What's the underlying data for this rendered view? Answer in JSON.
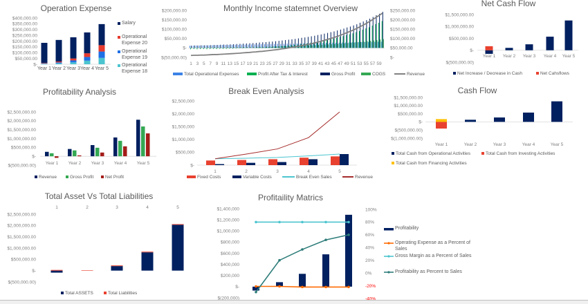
{
  "chart_data": [
    {
      "type": "bar",
      "stacked": true,
      "title": "Operation Expense",
      "categories": [
        "Year 1",
        "Year 2",
        "Year 3",
        "Year 4",
        "Year 5"
      ],
      "y_ticks": [
        "$400,000.00",
        "$350,000.00",
        "$300,000.00",
        "$250,000.00",
        "$200,000.00",
        "$150,000.00",
        "$100,000.00",
        "$50,000.00",
        "$-"
      ],
      "ylim": [
        0,
        400000
      ],
      "legend_position": "right",
      "series": [
        {
          "name": "Salary",
          "color": "#002060",
          "values": [
            173000,
            186000,
            183000,
            180000,
            182000
          ]
        },
        {
          "name": "Operational Expense 20",
          "color": "#e63a2e",
          "values": [
            4000,
            8000,
            17000,
            32000,
            55000
          ]
        },
        {
          "name": "Operational Expense 19",
          "color": "#1f6fe5",
          "values": [
            4000,
            8000,
            17000,
            32000,
            55000
          ]
        },
        {
          "name": "Operational Expense 18",
          "color": "#4bc4cf",
          "values": [
            4000,
            8000,
            16000,
            31000,
            55000
          ]
        }
      ]
    },
    {
      "type": "bar",
      "title": "Monthly Income statemnet Overview",
      "x": [
        1,
        2,
        3,
        4,
        5,
        6,
        7,
        8,
        9,
        10,
        11,
        12,
        13,
        14,
        15,
        16,
        17,
        18,
        19,
        20,
        21,
        22,
        23,
        24,
        25,
        26,
        27,
        28,
        29,
        30,
        31,
        32,
        33,
        34,
        35,
        36,
        37,
        38,
        39,
        40,
        41,
        42,
        43,
        44,
        45,
        46,
        47,
        48,
        49,
        50,
        51,
        52,
        53,
        54,
        55,
        56,
        57,
        58,
        59,
        60
      ],
      "y_ticks_left": [
        "$200,000.00",
        "$150,000.00",
        "$100,000.00",
        "$50,000.00",
        "$-",
        "$(50,000.00)"
      ],
      "y_ticks_right": [
        "$250,000.00",
        "$200,000.00",
        "$150,000.00",
        "$100,000.00",
        "$50,000.00",
        "$-"
      ],
      "ylim_left": [
        -50000,
        200000
      ],
      "ylim_right": [
        0,
        250000
      ],
      "legend_position": "bottom",
      "series": [
        {
          "name": "Total Operational Expenses",
          "type": "bar",
          "color": "#3c82e6",
          "values": [
            12000,
            12000,
            13000,
            13000,
            13000,
            14000,
            14000,
            14000,
            15000,
            15000,
            16000,
            16000,
            16000,
            17000,
            17000,
            17000,
            18000,
            18000,
            18000,
            19000,
            19000,
            19000,
            20000,
            20000,
            21000,
            21000,
            21000,
            22000,
            22000,
            22000,
            23000,
            23000,
            23000,
            24000,
            24000,
            24000,
            25000,
            25000,
            26000,
            26000,
            26000,
            27000,
            27000,
            27000,
            28000,
            28000,
            28000,
            29000,
            29000,
            29000,
            30000,
            30000,
            31000,
            31000,
            31000,
            32000,
            32000,
            32000,
            33000,
            33000
          ]
        },
        {
          "name": "Profit After Tax & Interest",
          "type": "bar",
          "color": "#00b050",
          "values": [
            -7000,
            -6000,
            -7000,
            -6000,
            -6000,
            -7000,
            -6000,
            -5000,
            -6000,
            -5000,
            -5000,
            -5000,
            -4000,
            -4000,
            -3000,
            -2000,
            -2000,
            -1000,
            0,
            0,
            1000,
            3000,
            3000,
            3000,
            4000,
            5000,
            7000,
            8000,
            10000,
            12000,
            13000,
            15000,
            17000,
            18000,
            21000,
            23000,
            25000,
            28000,
            30000,
            34000,
            36000,
            39000,
            43000,
            47000,
            50000,
            54000,
            59000,
            63000,
            69000,
            73000,
            78000,
            84000,
            90000,
            97000,
            104000,
            110000,
            119000,
            127000,
            134000,
            143000
          ]
        },
        {
          "name": "Gross Profit",
          "type": "bar",
          "color": "#002060",
          "values": [
            12000,
            13000,
            13000,
            14000,
            14000,
            14000,
            15000,
            16000,
            16000,
            17000,
            18000,
            18000,
            19000,
            20000,
            21000,
            22000,
            23000,
            24000,
            25000,
            26000,
            27000,
            29000,
            30000,
            31000,
            33000,
            34000,
            36000,
            38000,
            40000,
            42000,
            44000,
            46000,
            48000,
            51000,
            54000,
            56000,
            59000,
            62000,
            65000,
            69000,
            72000,
            76000,
            80000,
            84000,
            88000,
            93000,
            98000,
            103000,
            109000,
            114000,
            120000,
            126000,
            134000,
            141000,
            148000,
            156000,
            165000,
            174000,
            182000,
            192000
          ]
        },
        {
          "name": "COGS",
          "type": "bar",
          "color": "#34a853",
          "values": [
            2000,
            2000,
            2000,
            2000,
            2000,
            3000,
            3000,
            3000,
            3000,
            3000,
            3000,
            4000,
            4000,
            4000,
            4000,
            4000,
            5000,
            5000,
            5000,
            6000,
            6000,
            6000,
            6000,
            7000,
            7000,
            8000,
            8000,
            8000,
            9000,
            9000,
            10000,
            11000,
            11000,
            12000,
            12000,
            13000,
            14000,
            14000,
            15000,
            16000,
            17000,
            18000,
            19000,
            20000,
            21000,
            22000,
            23000,
            25000,
            26000,
            28000,
            29000,
            31000,
            32000,
            34000,
            36000,
            38000,
            40000,
            42000,
            45000,
            47000
          ]
        },
        {
          "name": "Revenue",
          "type": "line",
          "axis": "right",
          "color": "#808080",
          "values": [
            10000,
            11000,
            11000,
            12000,
            12000,
            13000,
            14000,
            15000,
            15000,
            16000,
            17000,
            18000,
            19000,
            20000,
            21000,
            22000,
            24000,
            25000,
            26000,
            28000,
            29000,
            31000,
            32000,
            34000,
            36000,
            38000,
            40000,
            42000,
            45000,
            47000,
            50000,
            53000,
            55000,
            59000,
            62000,
            65000,
            69000,
            72000,
            76000,
            81000,
            85000,
            90000,
            95000,
            100000,
            105000,
            111000,
            117000,
            124000,
            131000,
            138000,
            145000,
            153000,
            162000,
            171000,
            180000,
            190000,
            201000,
            212000,
            223000,
            235000
          ]
        }
      ]
    },
    {
      "type": "bar",
      "title": "Net Cash Flow",
      "categories": [
        "Year 1",
        "Year 2",
        "Year 3",
        "Year 4",
        "Year 5"
      ],
      "y_ticks": [
        "$1,500,000.00",
        "$1,000,000.00",
        "$500,000.00",
        "$-",
        "$(500,000.00)"
      ],
      "ylim": [
        -500000,
        1500000
      ],
      "legend_position": "bottom",
      "series": [
        {
          "name": "Net Increase / Decrease in Cash",
          "color": "#002060",
          "values": [
            -150000,
            100000,
            250000,
            570000,
            1250000
          ]
        },
        {
          "name": "Net Cahsflows",
          "color": "#e8412f",
          "values": [
            170000,
            0,
            0,
            0,
            0
          ]
        }
      ]
    },
    {
      "type": "bar",
      "title": "Profitability Analysis",
      "categories": [
        "Year 1",
        "Year 2",
        "Year 3",
        "Year 4",
        "Year 5"
      ],
      "y_ticks": [
        "$2,500,000.00",
        "$2,000,000.00",
        "$1,500,000.00",
        "$1,000,000.00",
        "$500,000.00",
        "$-",
        "$(500,000.00)"
      ],
      "ylim": [
        -500000,
        2500000
      ],
      "legend_position": "bottom",
      "series": [
        {
          "name": "Revenue",
          "color": "#002060",
          "values": [
            250000,
            410000,
            630000,
            1060000,
            2060000
          ]
        },
        {
          "name": "Gross Profit",
          "color": "#34a853",
          "values": [
            170000,
            330000,
            480000,
            870000,
            1680000
          ]
        },
        {
          "name": "Net Profit",
          "color": "#a31c18",
          "values": [
            -90000,
            50000,
            210000,
            560000,
            1290000
          ]
        }
      ]
    },
    {
      "type": "bar",
      "title": "Break Even Analysis",
      "categories": [
        "1",
        "2",
        "3",
        "4",
        "5"
      ],
      "y_ticks": [
        "$2,500,000",
        "$2,000,000",
        "$1,500,000",
        "$1,000,000",
        "$500,000",
        "$-"
      ],
      "ylim": [
        0,
        2500000
      ],
      "legend_position": "bottom",
      "series": [
        {
          "name": "Fixed Costs",
          "type": "bar",
          "color": "#e8412f",
          "values": [
            180000,
            200000,
            230000,
            290000,
            340000
          ]
        },
        {
          "name": "Variable Costs",
          "type": "bar",
          "color": "#002060",
          "values": [
            40000,
            90000,
            120000,
            230000,
            430000
          ]
        },
        {
          "name": "Break Even Sales",
          "type": "line",
          "color": "#4bc4cf",
          "values": [
            250000,
            270000,
            300000,
            360000,
            430000
          ]
        },
        {
          "name": "Revenue",
          "type": "line",
          "color": "#a52a2a",
          "values": [
            250000,
            430000,
            630000,
            1070000,
            2070000
          ]
        }
      ]
    },
    {
      "type": "bar",
      "stacked": true,
      "title": "Cash Flow",
      "categories": [
        "Year 1",
        "Year 2",
        "Year 3",
        "Year 4",
        "Year 5"
      ],
      "y_ticks": [
        "$1,500,000.00",
        "$1,000,000.00",
        "$500,000.00",
        "$-",
        "$(500,000.00)",
        "$(1,000,000.00)"
      ],
      "ylim": [
        -1000000,
        1500000
      ],
      "legend_position": "bottom",
      "series": [
        {
          "name": "Total Cash from Operational Activities",
          "color": "#002060",
          "values": [
            0,
            130000,
            270000,
            570000,
            1260000
          ]
        },
        {
          "name": "Total Cash from Investing Activities",
          "color": "#e8412f",
          "values": [
            -410000,
            0,
            0,
            0,
            0
          ]
        },
        {
          "name": "Total Cash from Financing Activities",
          "color": "#ffc000",
          "values": [
            170000,
            0,
            0,
            0,
            0
          ]
        }
      ]
    },
    {
      "type": "bar",
      "stacked": true,
      "title": "Total Asset Vs Total Liabilities",
      "categories": [
        "1",
        "2",
        "3",
        "4",
        "5"
      ],
      "y_ticks": [
        "$2,500,000.00",
        "$2,000,000.00",
        "$1,500,000.00",
        "$1,000,000.00",
        "$500,000.00",
        "$-",
        "$(500,000.00)"
      ],
      "ylim": [
        -500000,
        2500000
      ],
      "legend_position": "bottom",
      "series": [
        {
          "name": "Total ASSETS",
          "color": "#002060",
          "values": [
            -90000,
            0,
            200000,
            810000,
            2030000
          ]
        },
        {
          "name": "Total Liabilities",
          "color": "#e8412f",
          "values": [
            30000,
            20000,
            30000,
            30000,
            30000
          ]
        }
      ]
    },
    {
      "type": "bar",
      "title": "Profitaility Matrics",
      "categories": [
        "1",
        "2",
        "3",
        "4",
        "5"
      ],
      "y_ticks_left": [
        "$1,400,000",
        "$1,200,000",
        "$1,000,000",
        "$800,000",
        "$600,000",
        "$400,000",
        "$200,000",
        "$-",
        "$(200,000)"
      ],
      "y_ticks_right": [
        "100%",
        "80%",
        "60%",
        "40%",
        "20%",
        "0%",
        "-20%",
        "-40%"
      ],
      "negative_tick_color": "#ff0000",
      "ylim_left": [
        -200000,
        1400000
      ],
      "ylim_right": [
        -40,
        100
      ],
      "legend_position": "right",
      "series": [
        {
          "name": "Profitability",
          "type": "bar",
          "color": "#002060",
          "values": [
            -70000,
            80000,
            230000,
            580000,
            1290000
          ]
        },
        {
          "name": "Operating Expense as a Percent of Sales",
          "type": "line",
          "axis": "right",
          "color": "#ff6a00",
          "values": [
            -21,
            -21,
            -22,
            -22,
            -22
          ]
        },
        {
          "name": "Gross Margin as a Percent of Sales",
          "type": "line",
          "axis": "right",
          "color": "#4bc4cf",
          "values": [
            80,
            80,
            80,
            80,
            80
          ]
        },
        {
          "name": "Profitability as Percent to Sales",
          "type": "line",
          "axis": "right",
          "color": "#2e7d7a",
          "values": [
            -30,
            20,
            37,
            52,
            60
          ]
        }
      ]
    }
  ]
}
